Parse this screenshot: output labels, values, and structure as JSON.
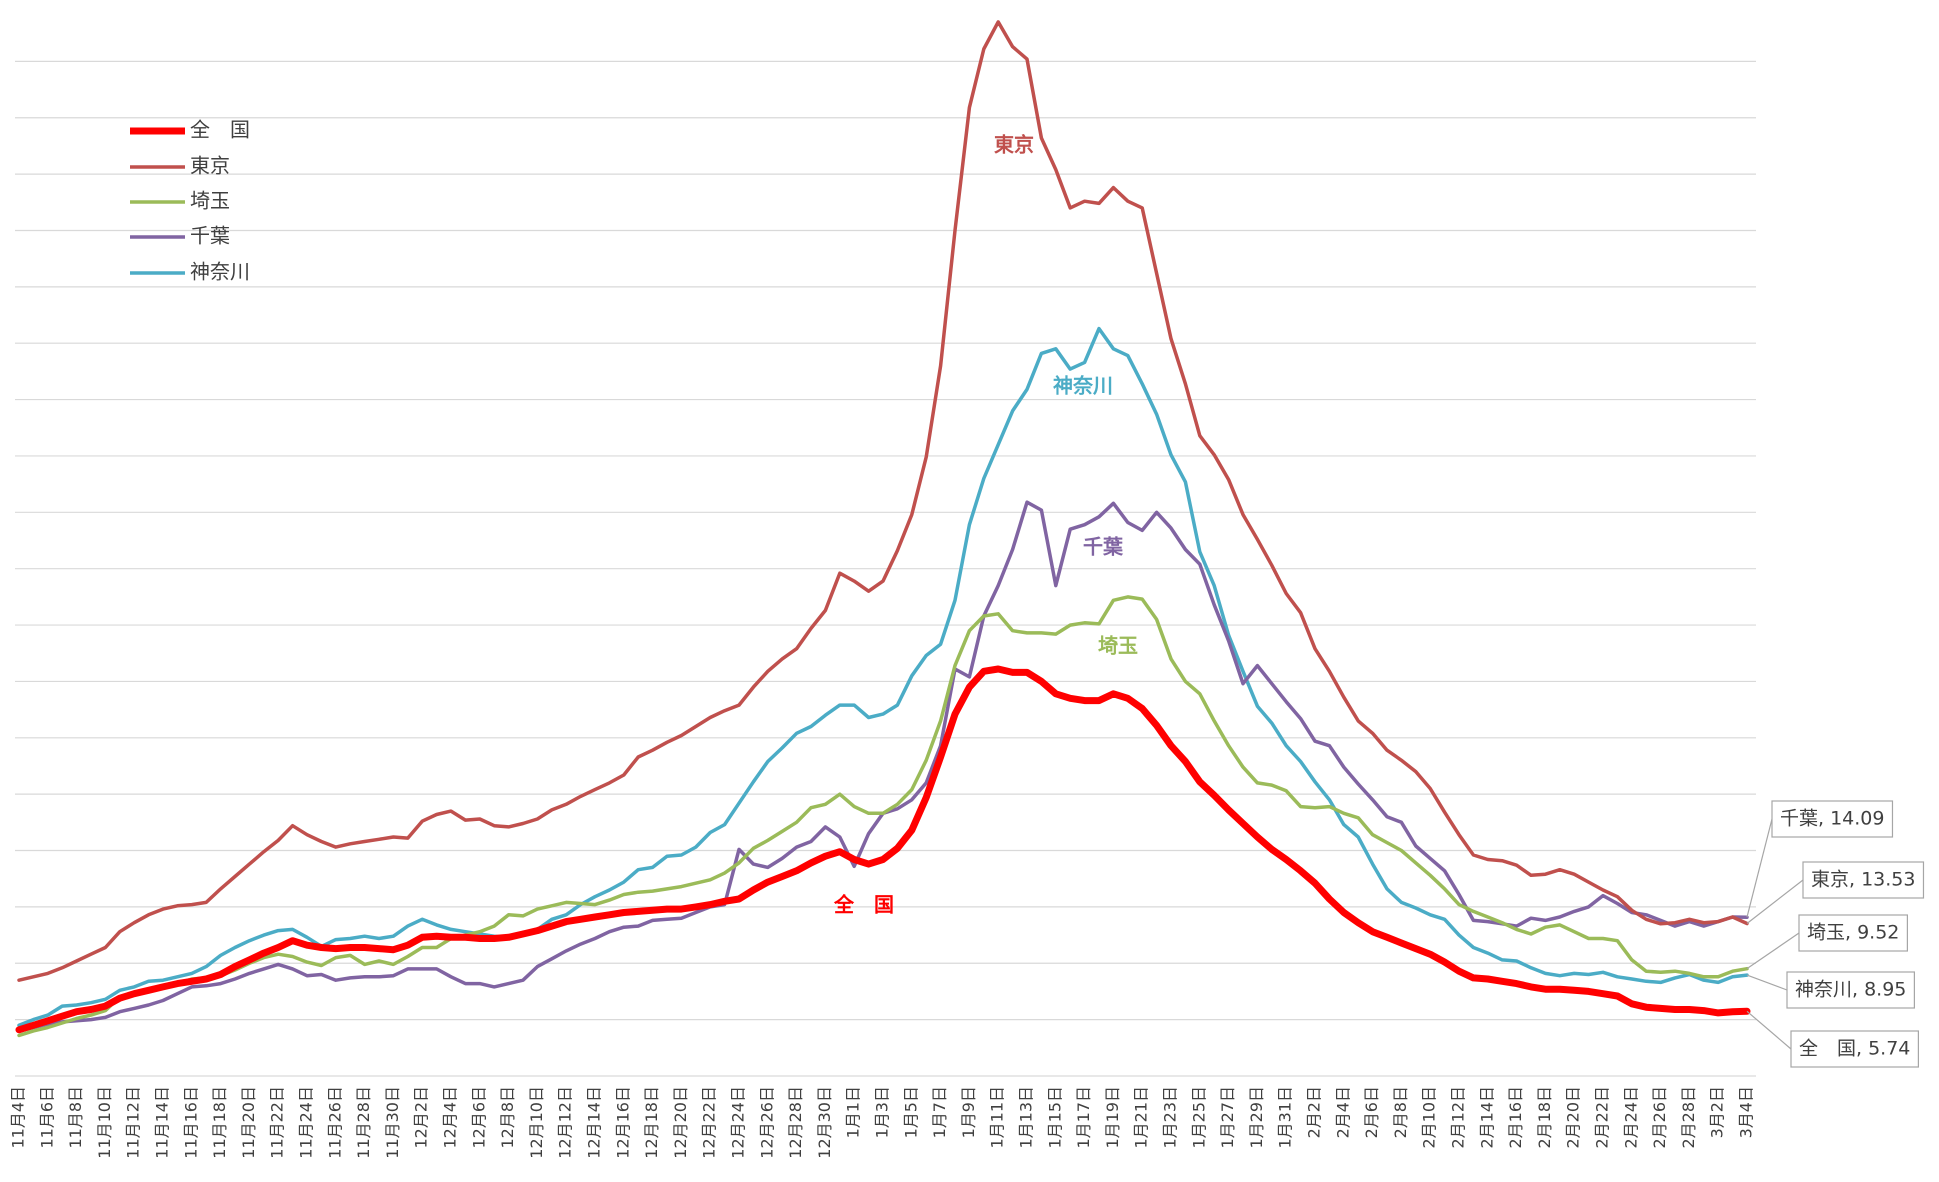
{
  "chart_data": {
    "type": "line",
    "categories": [
      "11月4日",
      null,
      "11月6日",
      null,
      "11月8日",
      null,
      "11月10日",
      null,
      "11月12日",
      null,
      "11月14日",
      null,
      "11月16日",
      null,
      "11月18日",
      null,
      "11月20日",
      null,
      "11月22日",
      null,
      "11月24日",
      null,
      "11月26日",
      null,
      "11月28日",
      null,
      "11月30日",
      null,
      "12月2日",
      null,
      "12月4日",
      null,
      "12月6日",
      null,
      "12月8日",
      null,
      "12月10日",
      null,
      "12月12日",
      null,
      "12月14日",
      null,
      "12月16日",
      null,
      "12月18日",
      null,
      "12月20日",
      null,
      "12月22日",
      null,
      "12月24日",
      null,
      "12月26日",
      null,
      "12月28日",
      null,
      "12月30日",
      null,
      "1月1日",
      null,
      "1月3日",
      null,
      "1月5日",
      null,
      "1月7日",
      null,
      "1月9日",
      null,
      "1月11日",
      null,
      "1月13日",
      null,
      "1月15日",
      null,
      "1月17日",
      null,
      "1月19日",
      null,
      "1月21日",
      null,
      "1月23日",
      null,
      "1月25日",
      null,
      "1月27日",
      null,
      "1月29日",
      null,
      "1月31日",
      null,
      "2月2日",
      null,
      "2月4日",
      null,
      "2月6日",
      null,
      "2月8日",
      null,
      "2月10日",
      null,
      "2月12日",
      null,
      "2月14日",
      null,
      "2月16日",
      null,
      "2月18日",
      null,
      "2月20日",
      null,
      "2月22日",
      null,
      "2月24日",
      null,
      "2月26日",
      null,
      "2月28日",
      null,
      "3月2日",
      null,
      "3月4日"
    ],
    "series": [
      {
        "name": "全　国",
        "color": "#ff0000",
        "width": 7,
        "end_label": "全　国, 5.74",
        "values": [
          4.1,
          4.5,
          4.9,
          5.3,
          5.7,
          5.9,
          6.2,
          6.9,
          7.3,
          7.6,
          7.9,
          8.2,
          8.4,
          8.6,
          9.0,
          9.7,
          10.3,
          10.9,
          11.4,
          12.0,
          11.6,
          11.4,
          11.3,
          11.4,
          11.4,
          11.3,
          11.2,
          11.6,
          12.3,
          12.4,
          12.3,
          12.3,
          12.2,
          12.2,
          12.3,
          12.6,
          12.9,
          13.3,
          13.7,
          13.9,
          14.1,
          14.3,
          14.5,
          14.6,
          14.7,
          14.8,
          14.8,
          15.0,
          15.2,
          15.5,
          15.7,
          16.5,
          17.2,
          17.7,
          18.2,
          18.9,
          19.5,
          19.9,
          19.2,
          18.8,
          19.2,
          20.2,
          21.8,
          24.7,
          28.3,
          32.1,
          34.5,
          35.9,
          36.1,
          35.8,
          35.8,
          35.0,
          33.9,
          33.5,
          33.3,
          33.3,
          33.9,
          33.5,
          32.6,
          31.1,
          29.3,
          27.9,
          26.1,
          24.9,
          23.6,
          22.4,
          21.2,
          20.1,
          19.2,
          18.2,
          17.1,
          15.7,
          14.5,
          13.6,
          12.8,
          12.3,
          11.8,
          11.3,
          10.8,
          10.1,
          9.3,
          8.7,
          8.6,
          8.4,
          8.2,
          7.9,
          7.7,
          7.7,
          7.6,
          7.5,
          7.3,
          7.1,
          6.4,
          6.1,
          6.0,
          5.9,
          5.9,
          5.8,
          5.6,
          5.7,
          5.74
        ]
      },
      {
        "name": "東京",
        "color": "#c0504d",
        "width": 3.5,
        "end_label": "東京, 13.53",
        "values": [
          8.5,
          8.8,
          9.1,
          9.6,
          10.2,
          10.8,
          11.4,
          12.8,
          13.6,
          14.3,
          14.8,
          15.1,
          15.2,
          15.4,
          16.6,
          17.7,
          18.8,
          19.9,
          20.9,
          22.2,
          21.4,
          20.8,
          20.3,
          20.6,
          20.8,
          21.0,
          21.2,
          21.1,
          22.6,
          23.2,
          23.5,
          22.7,
          22.8,
          22.2,
          22.1,
          22.4,
          22.8,
          23.6,
          24.1,
          24.8,
          25.4,
          26.0,
          26.7,
          28.3,
          28.9,
          29.6,
          30.2,
          31.0,
          31.8,
          32.4,
          32.9,
          34.5,
          35.9,
          37.0,
          37.9,
          39.7,
          41.3,
          44.6,
          43.9,
          43.0,
          43.9,
          46.6,
          49.8,
          54.9,
          63.0,
          75.0,
          85.9,
          91.1,
          93.5,
          91.3,
          90.2,
          83.2,
          80.4,
          77.0,
          77.6,
          77.4,
          78.8,
          77.6,
          77.0,
          71.2,
          65.4,
          61.4,
          56.8,
          55.1,
          52.9,
          49.8,
          47.6,
          45.3,
          42.8,
          41.1,
          37.9,
          35.9,
          33.6,
          31.5,
          30.4,
          28.9,
          28.0,
          27.0,
          25.5,
          23.4,
          21.4,
          19.6,
          19.2,
          19.1,
          18.7,
          17.8,
          17.9,
          18.3,
          17.9,
          17.2,
          16.5,
          15.9,
          14.7,
          13.9,
          13.5,
          13.6,
          13.9,
          13.6,
          13.7,
          14.1,
          13.53
        ]
      },
      {
        "name": "埼玉",
        "color": "#9bbb59",
        "width": 3.5,
        "end_label": "埼玉, 9.52",
        "values": [
          3.6,
          4.0,
          4.3,
          4.7,
          5.1,
          5.4,
          5.8,
          7.0,
          7.3,
          7.6,
          7.9,
          8.2,
          8.6,
          8.7,
          8.9,
          9.4,
          10.0,
          10.5,
          10.8,
          10.6,
          10.1,
          9.8,
          10.5,
          10.7,
          9.9,
          10.2,
          9.9,
          10.6,
          11.4,
          11.4,
          12.2,
          12.5,
          12.8,
          13.3,
          14.3,
          14.2,
          14.8,
          15.1,
          15.4,
          15.3,
          15.2,
          15.6,
          16.1,
          16.3,
          16.4,
          16.6,
          16.8,
          17.1,
          17.4,
          18.0,
          18.9,
          20.2,
          20.9,
          21.7,
          22.5,
          23.8,
          24.1,
          25.0,
          23.9,
          23.3,
          23.3,
          24.1,
          25.4,
          28.0,
          31.5,
          36.4,
          39.5,
          40.8,
          41.0,
          39.5,
          39.3,
          39.3,
          39.2,
          40.0,
          40.2,
          40.1,
          42.2,
          42.5,
          42.3,
          40.5,
          37.0,
          35.0,
          33.9,
          31.5,
          29.3,
          27.4,
          26.0,
          25.8,
          25.3,
          23.9,
          23.8,
          23.9,
          23.3,
          22.9,
          21.4,
          20.7,
          20.0,
          18.9,
          17.8,
          16.6,
          15.2,
          14.6,
          14.1,
          13.6,
          13.0,
          12.6,
          13.2,
          13.4,
          12.8,
          12.2,
          12.2,
          12.0,
          10.3,
          9.3,
          9.2,
          9.3,
          9.1,
          8.8,
          8.8,
          9.3,
          9.52
        ]
      },
      {
        "name": "千葉",
        "color": "#8064a2",
        "width": 3.5,
        "end_label": "千葉, 14.09",
        "values": [
          4.0,
          4.3,
          4.6,
          4.8,
          4.9,
          5.0,
          5.2,
          5.7,
          6.0,
          6.3,
          6.7,
          7.3,
          7.9,
          8.0,
          8.2,
          8.6,
          9.1,
          9.5,
          9.9,
          9.5,
          8.9,
          9.0,
          8.5,
          8.7,
          8.8,
          8.8,
          8.9,
          9.5,
          9.5,
          9.5,
          8.8,
          8.2,
          8.2,
          7.9,
          8.2,
          8.5,
          9.7,
          10.4,
          11.1,
          11.7,
          12.2,
          12.8,
          13.2,
          13.3,
          13.8,
          13.9,
          14.0,
          14.5,
          15.0,
          15.2,
          20.1,
          18.8,
          18.5,
          19.3,
          20.3,
          20.8,
          22.1,
          21.2,
          18.6,
          21.5,
          23.3,
          23.7,
          24.5,
          26.0,
          29.3,
          36.1,
          35.4,
          40.8,
          43.5,
          46.7,
          50.9,
          50.2,
          43.5,
          48.5,
          48.9,
          49.6,
          50.8,
          49.1,
          48.4,
          50.0,
          48.6,
          46.7,
          45.4,
          41.8,
          38.6,
          34.8,
          36.4,
          34.8,
          33.2,
          31.7,
          29.7,
          29.3,
          27.4,
          25.9,
          24.5,
          23.0,
          22.5,
          20.4,
          19.3,
          18.2,
          16.1,
          13.8,
          13.7,
          13.5,
          13.3,
          14.0,
          13.8,
          14.1,
          14.6,
          15.0,
          16.0,
          15.3,
          14.5,
          14.3,
          13.8,
          13.3,
          13.7,
          13.3,
          13.7,
          14.1,
          14.09
        ]
      },
      {
        "name": "神奈川",
        "color": "#4bacc6",
        "width": 3.5,
        "end_label": "神奈川, 8.95",
        "values": [
          4.5,
          5.0,
          5.4,
          6.2,
          6.3,
          6.5,
          6.8,
          7.6,
          7.9,
          8.4,
          8.5,
          8.8,
          9.1,
          9.7,
          10.7,
          11.4,
          12.0,
          12.5,
          12.9,
          13.0,
          12.3,
          11.5,
          12.1,
          12.2,
          12.4,
          12.2,
          12.4,
          13.3,
          13.9,
          13.4,
          13.0,
          12.8,
          12.6,
          12.4,
          12.3,
          12.7,
          13.0,
          13.9,
          14.3,
          15.2,
          15.9,
          16.5,
          17.2,
          18.3,
          18.5,
          19.5,
          19.6,
          20.3,
          21.6,
          22.3,
          24.2,
          26.1,
          27.9,
          29.1,
          30.4,
          31.0,
          32.0,
          32.9,
          32.9,
          31.8,
          32.1,
          32.9,
          35.5,
          37.3,
          38.3,
          42.2,
          48.9,
          53.0,
          56.0,
          59.0,
          60.9,
          64.1,
          64.5,
          62.7,
          63.3,
          66.3,
          64.5,
          63.9,
          61.4,
          58.7,
          55.1,
          52.7,
          46.5,
          43.5,
          39.1,
          35.9,
          32.8,
          31.3,
          29.3,
          27.9,
          26.1,
          24.5,
          22.3,
          21.2,
          18.8,
          16.6,
          15.4,
          14.9,
          14.3,
          13.9,
          12.5,
          11.4,
          10.9,
          10.3,
          10.2,
          9.6,
          9.1,
          8.9,
          9.1,
          9.0,
          9.2,
          8.8,
          8.6,
          8.4,
          8.3,
          8.7,
          9.0,
          8.5,
          8.3,
          8.8,
          8.95
        ]
      }
    ],
    "ylim": [
      0,
      95
    ],
    "yticks": [
      0,
      5,
      10,
      15,
      20,
      25,
      30,
      35,
      40,
      45,
      50,
      55,
      60,
      65,
      70,
      75,
      80,
      85,
      90
    ],
    "show_ytick_labels": false,
    "grid": true
  }
}
